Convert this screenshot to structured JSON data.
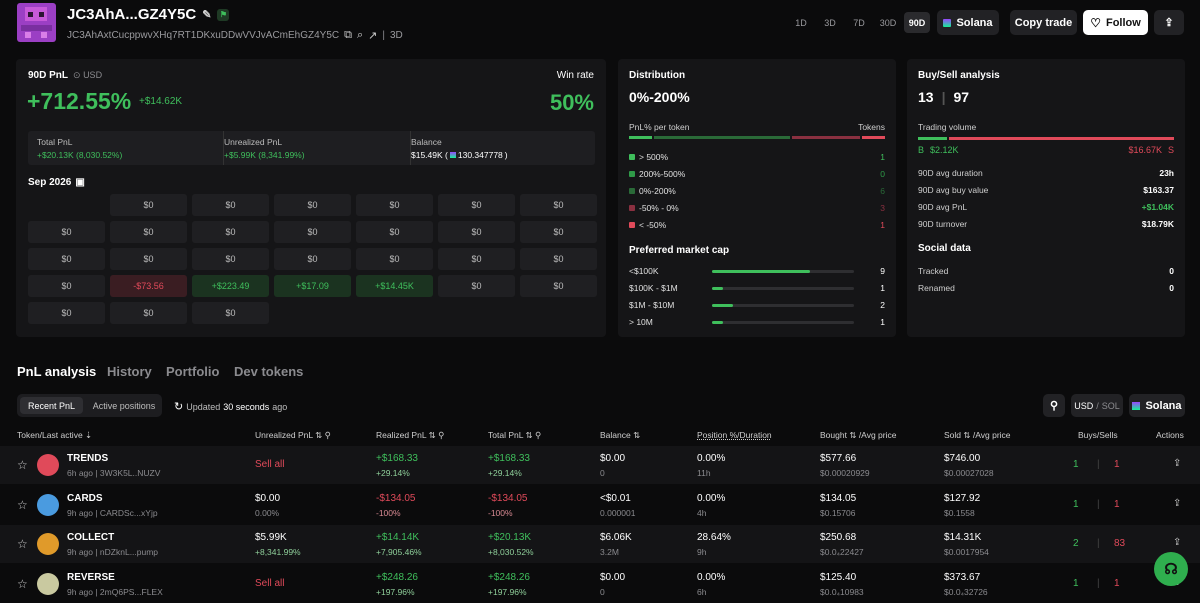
{
  "header": {
    "wallet_name": "JC3AhA...GZ4Y5C",
    "address": "JC3AhAxtCucppwvXHq7RT1DKxuDDwVVJvACmEhGZ4Y5C",
    "age": "3D",
    "periods": [
      "1D",
      "3D",
      "7D",
      "30D",
      "90D"
    ],
    "active_period": "90D",
    "chain": "Solana",
    "copy_trade": "Copy trade",
    "follow": "Follow"
  },
  "pnl": {
    "label": "90D PnL",
    "currency": "USD",
    "percent": "+712.55%",
    "amount": "+$14.62K",
    "winrate_label": "Win rate",
    "winrate": "50%",
    "total_label": "Total PnL",
    "total": "+$20.13K (8,030.52%)",
    "unreal_label": "Unrealized PnL",
    "unreal": "+$5.99K (8,341.99%)",
    "balance_label": "Balance",
    "balance": "$15.49K (",
    "balance_sol": "130.347778",
    "balance_close": ")"
  },
  "calendar": {
    "month": "Sep 2026",
    "cells": [
      "$0",
      "$0",
      "$0",
      "$0",
      "$0",
      "$0",
      "$0",
      "$0",
      "$0",
      "$0",
      "$0",
      "$0",
      "$0",
      "$0",
      "$0",
      "$0",
      "$0",
      "$0",
      "$0",
      "$0",
      "$0",
      "-$73.56",
      "+$223.49",
      "+$17.09",
      "+$14.45K",
      "$0",
      "$0",
      "$0",
      "$0",
      "$0"
    ]
  },
  "distribution": {
    "title": "Distribution",
    "range": "0%-200%",
    "col_left": "PnL% per token",
    "col_right": "Tokens",
    "rows": [
      {
        "label": "> 500%",
        "value": "1",
        "color": "#3fbf5c"
      },
      {
        "label": "200%-500%",
        "value": "0",
        "color": "#2f9a48"
      },
      {
        "label": "0%-200%",
        "value": "6",
        "color": "#2a6a38"
      },
      {
        "label": "-50% - 0%",
        "value": "3",
        "color": "#8a3040"
      },
      {
        "label": "< -50%",
        "value": "1",
        "color": "#e04a5a"
      }
    ],
    "mcap_title": "Preferred market cap",
    "mcap": [
      {
        "label": "<$100K",
        "value": "9",
        "fill": 0.69
      },
      {
        "label": "$100K - $1M",
        "value": "1",
        "fill": 0.08
      },
      {
        "label": "$1M - $10M",
        "value": "2",
        "fill": 0.15
      },
      {
        "label": "> 10M",
        "value": "1",
        "fill": 0.08
      }
    ]
  },
  "buysell": {
    "title": "Buy/Sell analysis",
    "buys": "13",
    "sells": "97",
    "volume_label": "Trading volume",
    "buy_tag": "B",
    "buy_vol": "$2.12K",
    "sell_vol": "$16.67K",
    "sell_tag": "S",
    "stats": [
      {
        "label": "90D avg duration",
        "value": "23h"
      },
      {
        "label": "90D avg buy value",
        "value": "$163.37"
      },
      {
        "label": "90D avg PnL",
        "value": "+$1.04K"
      },
      {
        "label": "90D turnover",
        "value": "$18.79K"
      }
    ],
    "social_title": "Social data",
    "social": [
      {
        "label": "Tracked",
        "value": "0"
      },
      {
        "label": "Renamed",
        "value": "0"
      }
    ]
  },
  "tabs": [
    "PnL analysis",
    "History",
    "Portfolio",
    "Dev tokens"
  ],
  "subtabs": [
    "Recent PnL",
    "Active positions"
  ],
  "updated_prefix": "Updated",
  "updated_value": "30 seconds",
  "updated_suffix": "ago",
  "currency_toggle": {
    "usd": "USD",
    "sep": "/",
    "sol": "SOL"
  },
  "columns": [
    "Token/Last active",
    "Unrealized PnL",
    "Realized PnL",
    "Total PnL",
    "Balance",
    "Position %/Duration",
    "Bought",
    "/Avg price",
    "Sold",
    "/Avg price",
    "Buys/Sells",
    "Actions"
  ],
  "rows": [
    {
      "name": "TRENDS",
      "meta": "6h ago | 3W3K5L..NUZV",
      "unreal": "Sell all",
      "unreal_sub": "",
      "real": "+$168.33",
      "real_sub": "+29.14%",
      "total": "+$168.33",
      "total_sub": "+29.14%",
      "bal": "$0.00",
      "bal_sub": "0",
      "pos": "0.00%",
      "dur": "11h",
      "bought": "$577.66",
      "bought_sub": "$0.00020929",
      "sold": "$746.00",
      "sold_sub": "$0.00027028",
      "buys": "1",
      "sells": "1"
    },
    {
      "name": "CARDS",
      "meta": "9h ago | CARDSc...xYjp",
      "unreal": "$0.00",
      "unreal_sub": "0.00%",
      "real": "-$134.05",
      "real_sub": "-100%",
      "total": "-$134.05",
      "total_sub": "-100%",
      "bal": "<$0.01",
      "bal_sub": "0.000001",
      "pos": "0.00%",
      "dur": "4h",
      "bought": "$134.05",
      "bought_sub": "$0.15706",
      "sold": "$127.92",
      "sold_sub": "$0.1558",
      "buys": "1",
      "sells": "1"
    },
    {
      "name": "COLLECT",
      "meta": "9h ago | nDZknL...pump",
      "unreal": "$5.99K",
      "unreal_sub": "+8,341.99%",
      "real": "+$14.14K",
      "real_sub": "+7,905.46%",
      "total": "+$20.13K",
      "total_sub": "+8,030.52%",
      "bal": "$6.06K",
      "bal_sub": "3.2M",
      "pos": "28.64%",
      "dur": "9h",
      "bought": "$250.68",
      "bought_sub": "$0.0₄22427",
      "sold": "$14.31K",
      "sold_sub": "$0.0017954",
      "buys": "2",
      "sells": "83"
    },
    {
      "name": "REVERSE",
      "meta": "9h ago | 2mQ6PS...FLEX",
      "unreal": "Sell all",
      "unreal_sub": "",
      "real": "+$248.26",
      "real_sub": "+197.96%",
      "total": "+$248.26",
      "total_sub": "+197.96%",
      "bal": "$0.00",
      "bal_sub": "0",
      "pos": "0.00%",
      "dur": "6h",
      "bought": "$125.40",
      "bought_sub": "$0.0₄10983",
      "sold": "$373.67",
      "sold_sub": "$0.0₄32726",
      "buys": "1",
      "sells": "1"
    }
  ]
}
